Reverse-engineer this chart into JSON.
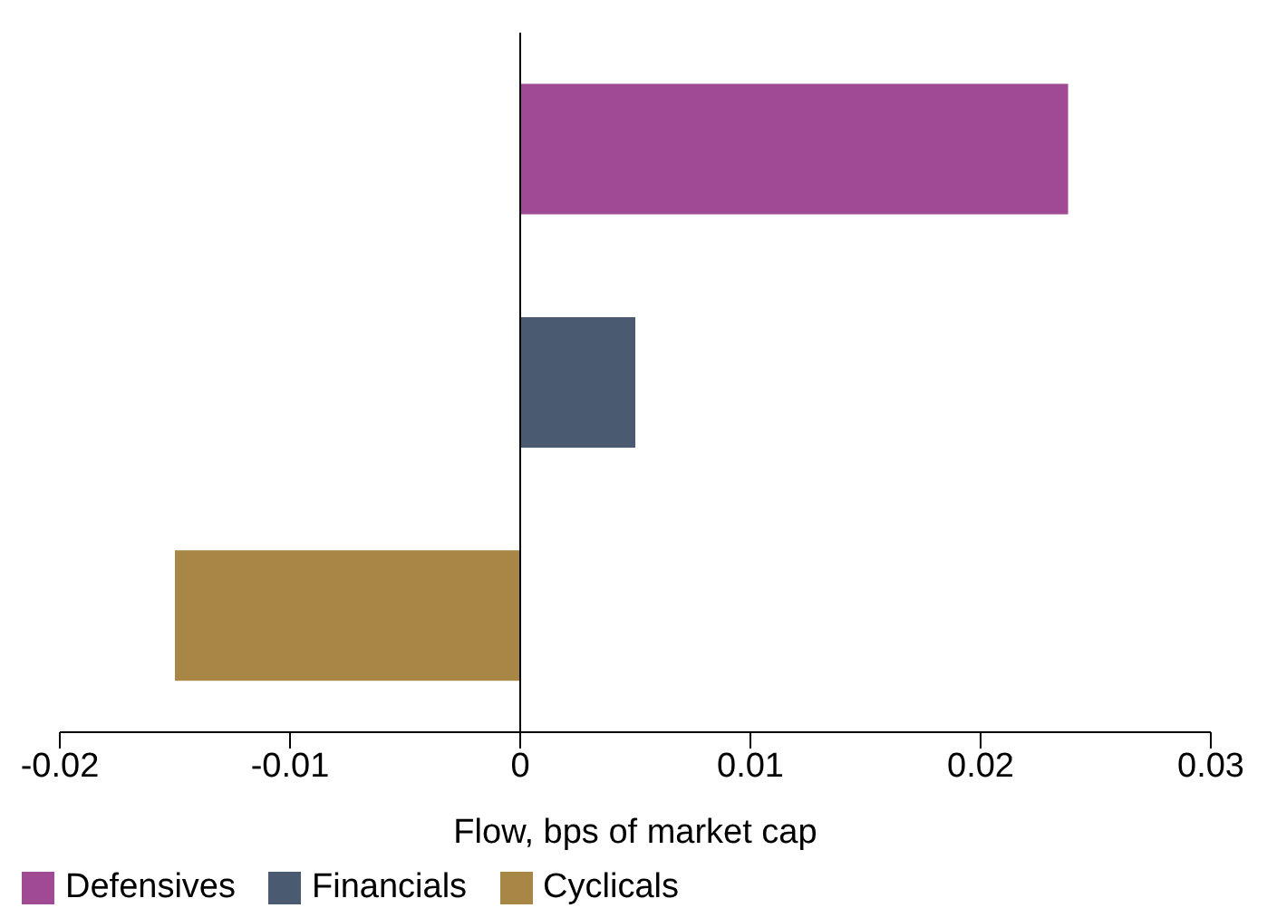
{
  "chart_data": {
    "type": "bar",
    "orientation": "horizontal",
    "stacked": true,
    "xlabel": "Flow, bps of market cap",
    "categories": [
      null,
      null,
      null
    ],
    "series": [
      {
        "name": "Defensives",
        "color": "#a04a94",
        "values": [
          0.0238,
          null,
          null
        ]
      },
      {
        "name": "Financials",
        "color": "#4a5a70",
        "values": [
          null,
          0.005,
          null
        ]
      },
      {
        "name": "Cyclicals",
        "color": "#a88646",
        "values": [
          null,
          null,
          -0.015
        ]
      }
    ],
    "xlim": [
      -0.02,
      0.03
    ],
    "xticks": [
      -0.02,
      -0.01,
      0,
      0.01,
      0.02,
      0.03
    ],
    "ref_lines": [
      {
        "axis": "x",
        "value": 0,
        "color": "#000000"
      }
    ],
    "legend": "bottom",
    "tick_labels": "x"
  }
}
